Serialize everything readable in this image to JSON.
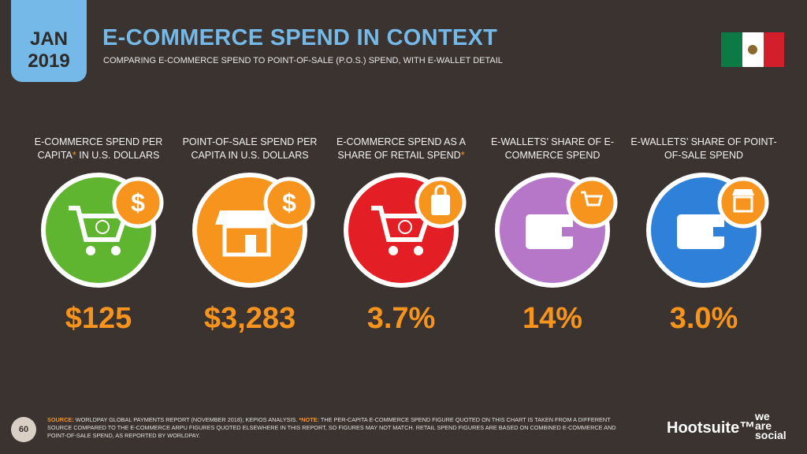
{
  "header": {
    "month": "JAN",
    "year": "2019",
    "title": "E-COMMERCE SPEND IN CONTEXT",
    "subtitle": "COMPARING E-COMMERCE SPEND TO POINT-OF-SALE (P.O.S.) SPEND, WITH E-WALLET DETAIL"
  },
  "panels": [
    {
      "label_parts": [
        "E-COMMERCE SPEND PER CAPITA",
        "*",
        " IN U.S. DOLLARS"
      ],
      "value": "$125"
    },
    {
      "label_parts": [
        "POINT-OF-SALE SPEND PER CAPITA IN U.S. DOLLARS"
      ],
      "value": "$3,283"
    },
    {
      "label_parts": [
        "E-COMMERCE SPEND AS A SHARE OF RETAIL SPEND",
        "*"
      ],
      "value": "3.7%"
    },
    {
      "label_parts": [
        "E-WALLETS’ SHARE OF E-COMMERCE SPEND"
      ],
      "value": "14%"
    },
    {
      "label_parts": [
        "E-WALLETS’ SHARE OF POINT-OF-SALE SPEND"
      ],
      "value": "3.0%"
    }
  ],
  "footer": {
    "page_number": "60",
    "source_label": "SOURCE:",
    "source_text": "WORLDPAY GLOBAL PAYMENTS REPORT (NOVEMBER 2018); KEPIOS ANALYSIS.",
    "note_label": "*NOTE:",
    "note_text": "THE PER-CAPITA E-COMMERCE SPEND FIGURE QUOTED ON THIS CHART IS TAKEN FROM A DIFFERENT SOURCE COMPARED TO THE E-COMMERCE ARPU FIGURES QUOTED ELSEWHERE IN THIS REPORT, SO FIGURES MAY NOT MATCH. RETAIL SPEND FIGURES ARE BASED ON COMBINED E-COMMERCE AND POINT-OF-SALE SPEND, AS REPORTED BY WORLDPAY.",
    "logo_hootsuite": "Hootsuite™",
    "logo_was": [
      "we",
      "are",
      "social"
    ]
  }
}
